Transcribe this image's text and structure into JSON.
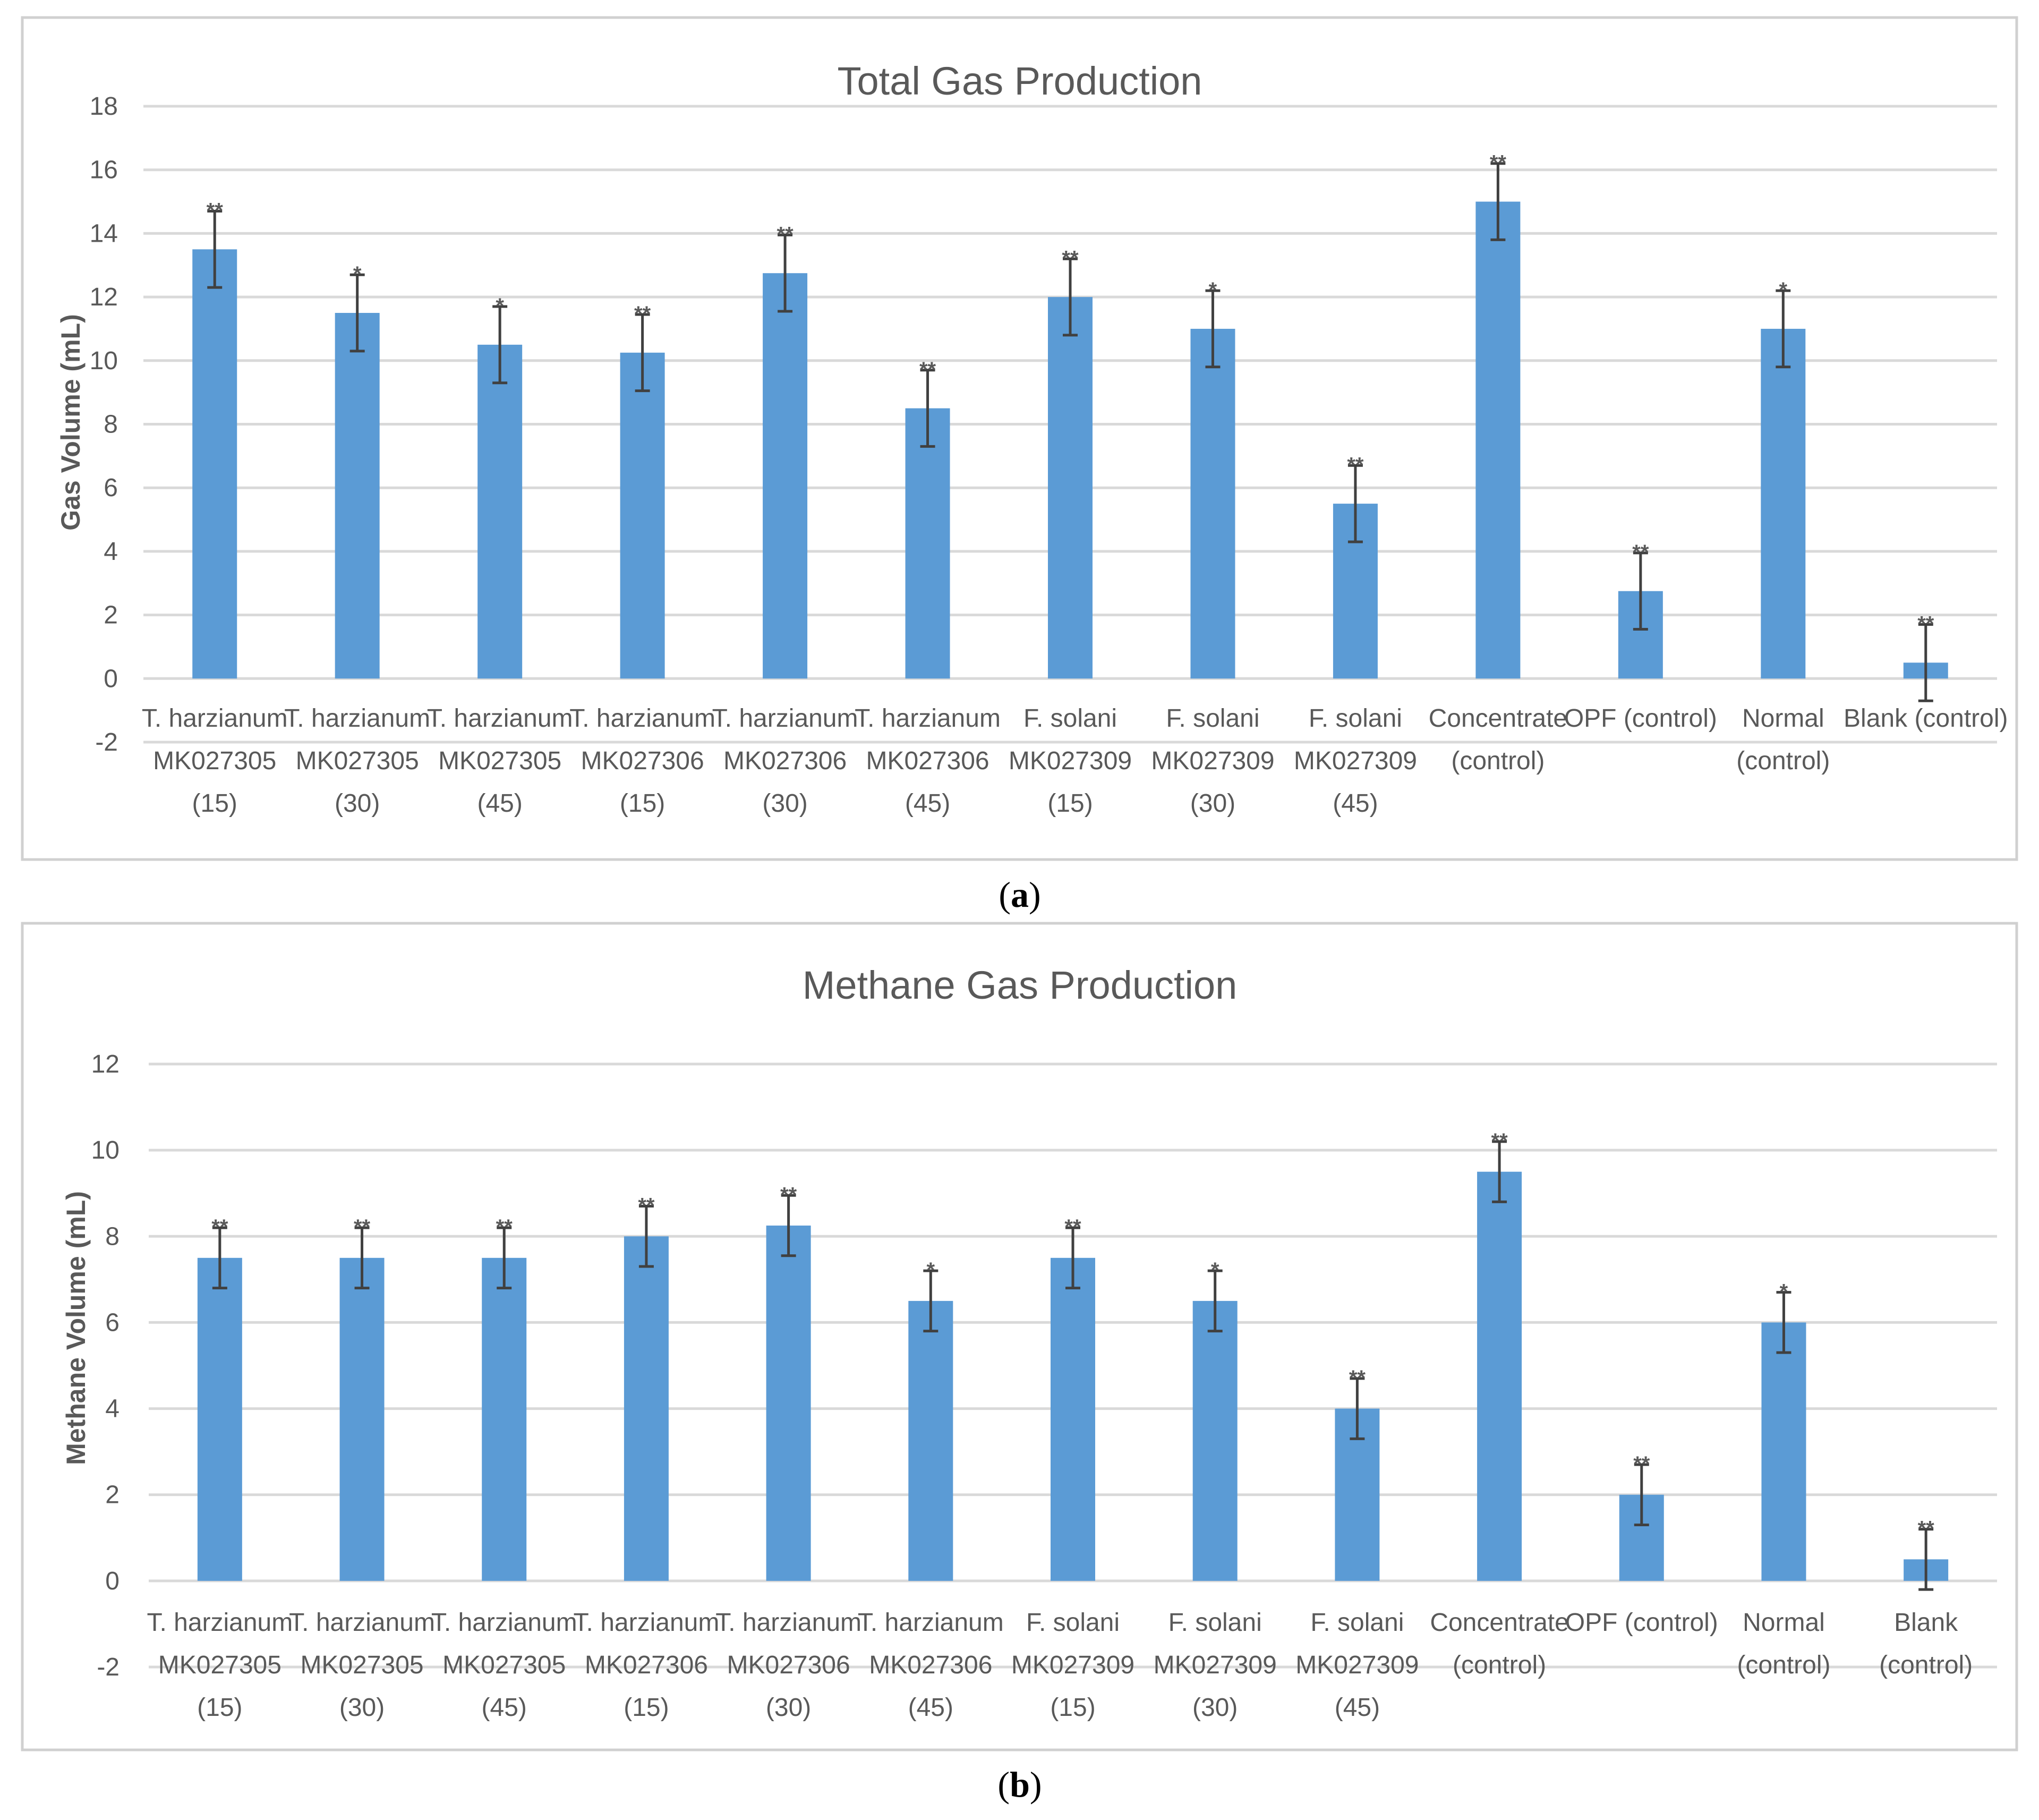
{
  "panels": [
    {
      "caption_letter": "a",
      "chart_data": {
        "type": "bar",
        "title": "Total Gas Production",
        "ylabel": "Gas Volume (mL)",
        "xlabel": "",
        "ylim": [
          -2,
          18
        ],
        "yticks": [
          -2,
          0,
          2,
          4,
          6,
          8,
          10,
          12,
          14,
          16,
          18
        ],
        "categories": [
          [
            "T. harzianum",
            "MK027305",
            "(15)"
          ],
          [
            "T. harzianum",
            "MK027305",
            "(30)"
          ],
          [
            "T. harzianum",
            "MK027305",
            "(45)"
          ],
          [
            "T. harzianum",
            "MK027306",
            "(15)"
          ],
          [
            "T. harzianum",
            "MK027306",
            "(30)"
          ],
          [
            "T. harzianum",
            "MK027306",
            "(45)"
          ],
          [
            "F. solani",
            "MK027309",
            "(15)"
          ],
          [
            "F. solani",
            "MK027309",
            "(30)"
          ],
          [
            "F. solani",
            "MK027309",
            "(45)"
          ],
          [
            "Concentrate",
            "(control)"
          ],
          [
            "OPF (control)"
          ],
          [
            "Normal",
            "(control)"
          ],
          [
            "Blank (control)"
          ]
        ],
        "values": [
          13.5,
          11.5,
          10.5,
          10.25,
          12.75,
          8.5,
          12.0,
          11.0,
          5.5,
          15.0,
          2.75,
          11.0,
          0.5
        ],
        "errors": [
          1.2,
          1.2,
          1.2,
          1.2,
          1.2,
          1.2,
          1.2,
          1.2,
          1.2,
          1.2,
          1.2,
          1.2,
          1.2
        ],
        "significance": [
          "**",
          "*",
          "*",
          "**",
          "**",
          "**",
          "**",
          "*",
          "**",
          "**",
          "**",
          "*",
          "**"
        ],
        "grid": true
      }
    },
    {
      "caption_letter": "b",
      "chart_data": {
        "type": "bar",
        "title": "Methane Gas Production",
        "ylabel": "Methane Volume (mL)",
        "xlabel": "",
        "ylim": [
          -2,
          12
        ],
        "yticks": [
          -2,
          0,
          2,
          4,
          6,
          8,
          10,
          12
        ],
        "categories": [
          [
            "T. harzianum",
            "MK027305",
            "(15)"
          ],
          [
            "T. harzianum",
            "MK027305",
            "(30)"
          ],
          [
            "T. harzianum",
            "MK027305",
            "(45)"
          ],
          [
            "T. harzianum",
            "MK027306",
            "(15)"
          ],
          [
            "T. harzianum",
            "MK027306",
            "(30)"
          ],
          [
            "T. harzianum",
            "MK027306",
            "(45)"
          ],
          [
            "F. solani",
            "MK027309",
            "(15)"
          ],
          [
            "F. solani",
            "MK027309",
            "(30)"
          ],
          [
            "F. solani",
            "MK027309",
            "(45)"
          ],
          [
            "Concentrate",
            "(control)"
          ],
          [
            "OPF (control)"
          ],
          [
            "Normal",
            "(control)"
          ],
          [
            "Blank",
            "(control)"
          ]
        ],
        "values": [
          7.5,
          7.5,
          7.5,
          8.0,
          8.25,
          6.5,
          7.5,
          6.5,
          4.0,
          9.5,
          2.0,
          6.0,
          0.5
        ],
        "errors": [
          0.7,
          0.7,
          0.7,
          0.7,
          0.7,
          0.7,
          0.7,
          0.7,
          0.7,
          0.7,
          0.7,
          0.7,
          0.7
        ],
        "significance": [
          "**",
          "**",
          "**",
          "**",
          "**",
          "*",
          "**",
          "*",
          "**",
          "**",
          "**",
          "*",
          "**"
        ],
        "grid": true
      }
    }
  ]
}
